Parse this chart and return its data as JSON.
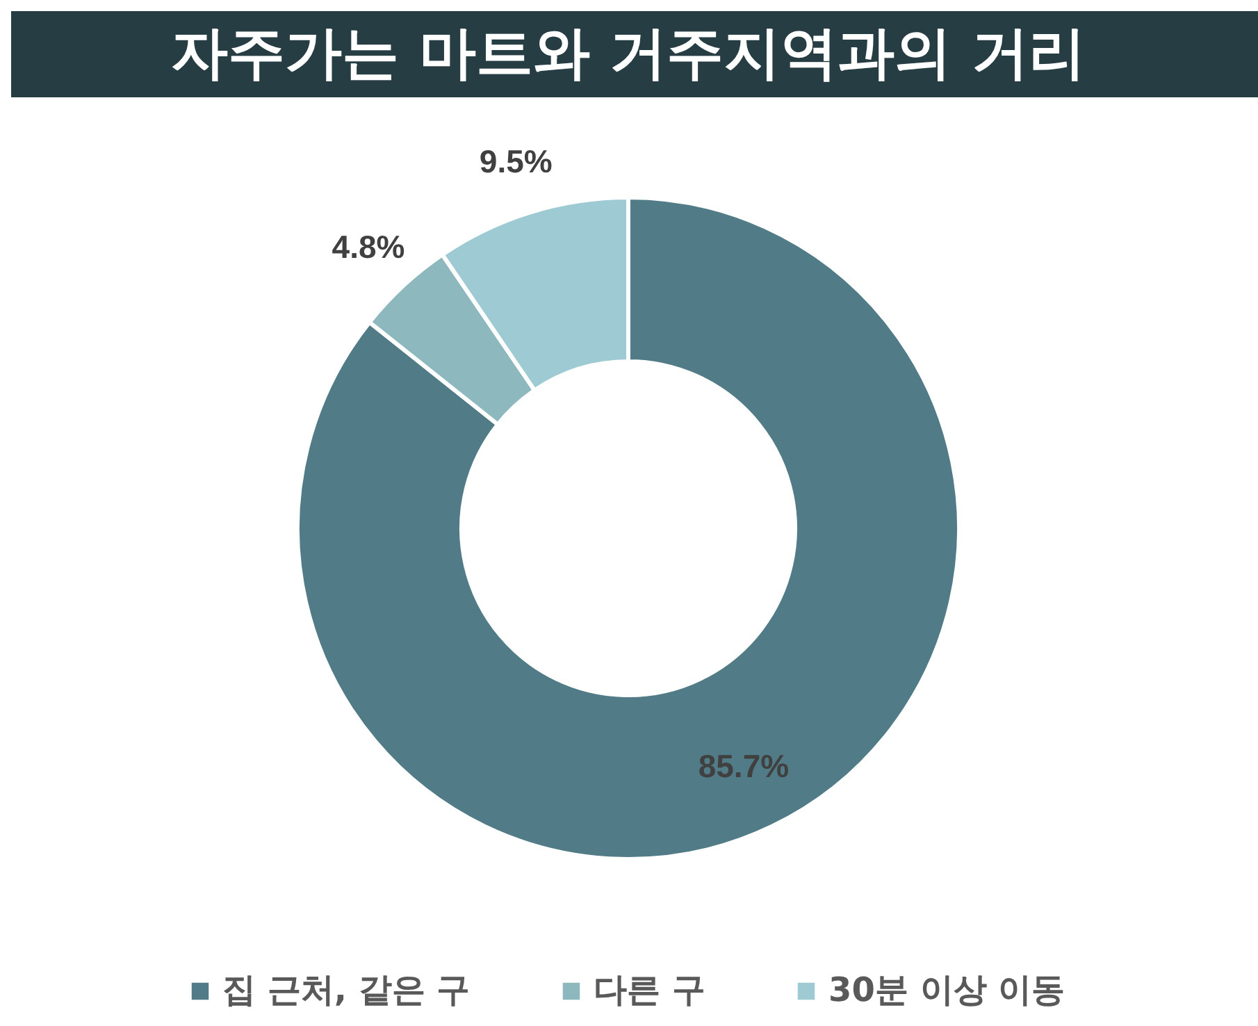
{
  "chart_data": {
    "type": "donut",
    "title": "자주가는 마트와 거주지역과의 거리",
    "categories": [
      "집 근처, 같은 구",
      "다른 구",
      "30분 이상 이동"
    ],
    "values": [
      85.7,
      4.8,
      9.5
    ],
    "colors": [
      "#517b87",
      "#8db8bd",
      "#9ecbd3"
    ],
    "value_labels": [
      "85.7%",
      "4.8%",
      "9.5%"
    ],
    "legend": "bottom"
  }
}
